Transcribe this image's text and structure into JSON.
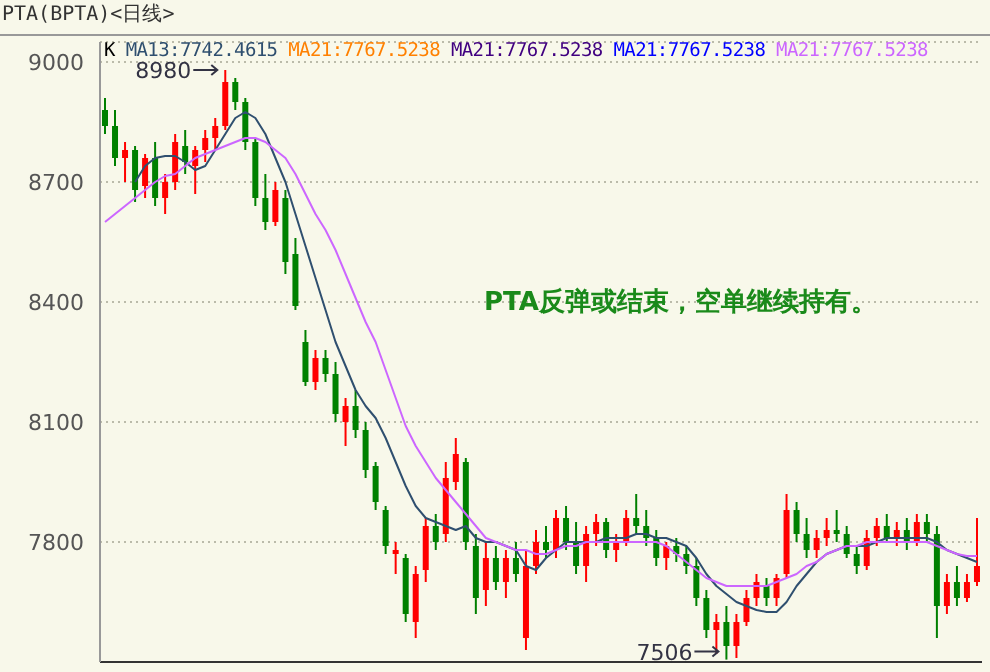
{
  "chart_data": {
    "type": "candlestick",
    "title": "PTA(BPTA)<日线>",
    "categories": [
      null,
      null,
      null,
      null,
      null,
      null,
      null,
      null,
      null,
      null,
      null,
      null,
      null,
      null,
      null,
      null,
      null,
      null,
      null,
      null,
      null,
      null,
      null,
      null,
      null,
      null,
      null,
      null,
      null,
      null,
      null,
      null,
      null,
      null,
      null,
      null,
      null,
      null,
      null,
      null,
      null,
      null,
      null,
      null,
      null,
      null,
      null,
      null,
      null,
      null,
      null,
      null,
      null,
      null,
      null,
      null,
      null,
      null,
      null,
      null,
      null,
      null,
      null,
      null,
      null,
      null,
      null,
      null,
      null,
      null,
      null,
      null,
      null,
      null,
      null,
      null,
      null,
      null,
      null,
      null,
      null,
      null,
      null,
      null,
      null,
      null,
      null,
      null
    ],
    "ohlc": [
      [
        8880,
        8910,
        8820,
        8840
      ],
      [
        8840,
        8880,
        8740,
        8760
      ],
      [
        8760,
        8800,
        8700,
        8780
      ],
      [
        8780,
        8790,
        8650,
        8680
      ],
      [
        8690,
        8770,
        8660,
        8760
      ],
      [
        8760,
        8800,
        8640,
        8660
      ],
      [
        8660,
        8720,
        8620,
        8700
      ],
      [
        8700,
        8820,
        8680,
        8800
      ],
      [
        8790,
        8830,
        8720,
        8750
      ],
      [
        8740,
        8790,
        8670,
        8780
      ],
      [
        8780,
        8830,
        8750,
        8810
      ],
      [
        8810,
        8860,
        8780,
        8840
      ],
      [
        8840,
        8980,
        8830,
        8950
      ],
      [
        8950,
        8960,
        8880,
        8900
      ],
      [
        8900,
        8910,
        8780,
        8800
      ],
      [
        8800,
        8810,
        8640,
        8660
      ],
      [
        8660,
        8720,
        8580,
        8600
      ],
      [
        8600,
        8700,
        8590,
        8680
      ],
      [
        8660,
        8680,
        8470,
        8500
      ],
      [
        8520,
        8560,
        8380,
        8390
      ],
      [
        8300,
        8330,
        8190,
        8200
      ],
      [
        8200,
        8280,
        8180,
        8260
      ],
      [
        8260,
        8280,
        8200,
        8220
      ],
      [
        8220,
        8250,
        8100,
        8120
      ],
      [
        8100,
        8160,
        8040,
        8140
      ],
      [
        8140,
        8180,
        8060,
        8080
      ],
      [
        8080,
        8100,
        7960,
        7980
      ],
      [
        7990,
        8000,
        7880,
        7900
      ],
      [
        7880,
        7890,
        7770,
        7790
      ],
      [
        7770,
        7800,
        7720,
        7780
      ],
      [
        7760,
        7770,
        7600,
        7620
      ],
      [
        7600,
        7740,
        7560,
        7720
      ],
      [
        7730,
        7860,
        7700,
        7840
      ],
      [
        7840,
        7870,
        7780,
        7800
      ],
      [
        7820,
        8000,
        7800,
        7960
      ],
      [
        7950,
        8060,
        7930,
        8020
      ],
      [
        8000,
        8010,
        7780,
        7800
      ],
      [
        7790,
        7820,
        7620,
        7660
      ],
      [
        7680,
        7800,
        7640,
        7760
      ],
      [
        7760,
        7790,
        7680,
        7700
      ],
      [
        7700,
        7780,
        7660,
        7760
      ],
      [
        7760,
        7800,
        7700,
        7720
      ],
      [
        7560,
        7780,
        7530,
        7740
      ],
      [
        7740,
        7830,
        7720,
        7800
      ],
      [
        7800,
        7840,
        7760,
        7780
      ],
      [
        7780,
        7880,
        7760,
        7860
      ],
      [
        7860,
        7890,
        7780,
        7800
      ],
      [
        7800,
        7850,
        7720,
        7740
      ],
      [
        7740,
        7840,
        7700,
        7820
      ],
      [
        7820,
        7870,
        7790,
        7850
      ],
      [
        7850,
        7860,
        7760,
        7780
      ],
      [
        7780,
        7820,
        7750,
        7800
      ],
      [
        7800,
        7880,
        7790,
        7860
      ],
      [
        7860,
        7920,
        7820,
        7840
      ],
      [
        7840,
        7880,
        7790,
        7810
      ],
      [
        7810,
        7830,
        7740,
        7760
      ],
      [
        7760,
        7800,
        7730,
        7790
      ],
      [
        7790,
        7810,
        7750,
        7770
      ],
      [
        7770,
        7790,
        7720,
        7740
      ],
      [
        7740,
        7760,
        7640,
        7660
      ],
      [
        7660,
        7680,
        7560,
        7580
      ],
      [
        7580,
        7620,
        7520,
        7600
      ],
      [
        7600,
        7640,
        7506,
        7540
      ],
      [
        7540,
        7620,
        7510,
        7600
      ],
      [
        7600,
        7680,
        7590,
        7660
      ],
      [
        7660,
        7720,
        7640,
        7700
      ],
      [
        7690,
        7710,
        7640,
        7660
      ],
      [
        7660,
        7720,
        7640,
        7710
      ],
      [
        7720,
        7920,
        7710,
        7880
      ],
      [
        7880,
        7900,
        7800,
        7820
      ],
      [
        7820,
        7860,
        7760,
        7780
      ],
      [
        7780,
        7830,
        7760,
        7810
      ],
      [
        7810,
        7860,
        7790,
        7830
      ],
      [
        7830,
        7880,
        7800,
        7820
      ],
      [
        7820,
        7840,
        7760,
        7770
      ],
      [
        7770,
        7790,
        7720,
        7740
      ],
      [
        7740,
        7830,
        7730,
        7810
      ],
      [
        7810,
        7860,
        7790,
        7840
      ],
      [
        7840,
        7870,
        7800,
        7810
      ],
      [
        7810,
        7850,
        7790,
        7830
      ],
      [
        7830,
        7860,
        7780,
        7800
      ],
      [
        7800,
        7870,
        7790,
        7850
      ],
      [
        7850,
        7870,
        7800,
        7820
      ],
      [
        7820,
        7840,
        7560,
        7640
      ],
      [
        7640,
        7720,
        7620,
        7700
      ],
      [
        7700,
        7740,
        7640,
        7660
      ],
      [
        7660,
        7720,
        7650,
        7700
      ],
      [
        7700,
        7860,
        7690,
        7740
      ]
    ],
    "series": [
      {
        "name": "MA13:7742.4615",
        "type": "line",
        "color": "#2f4f6f",
        "values": [
          null,
          null,
          null,
          8700,
          8740,
          8760,
          8765,
          8765,
          8750,
          8730,
          8740,
          8780,
          8820,
          8860,
          8875,
          8860,
          8820,
          8760,
          8700,
          8620,
          8540,
          8460,
          8380,
          8300,
          8240,
          8180,
          8140,
          8110,
          8060,
          8000,
          7940,
          7890,
          7860,
          7850,
          7840,
          7830,
          7840,
          7810,
          7800,
          7800,
          7790,
          7780,
          7740,
          7730,
          7760,
          7780,
          7800,
          7800,
          7800,
          7800,
          7810,
          7810,
          7810,
          7820,
          7820,
          7810,
          7810,
          7800,
          7790,
          7760,
          7720,
          7690,
          7670,
          7650,
          7640,
          7630,
          7625,
          7625,
          7650,
          7690,
          7720,
          7750,
          7770,
          7780,
          7790,
          7790,
          7790,
          7800,
          7810,
          7810,
          7810,
          7810,
          7810,
          7800,
          7780,
          7770,
          7760,
          7750
        ]
      },
      {
        "name": "MA21:7767.5238",
        "type": "line",
        "color": "#cc66ff",
        "values": [
          8600,
          8620,
          8640,
          8660,
          8680,
          8700,
          8715,
          8720,
          8740,
          8760,
          8770,
          8780,
          8790,
          8800,
          8810,
          8810,
          8800,
          8780,
          8760,
          8720,
          8670,
          8620,
          8580,
          8530,
          8470,
          8410,
          8350,
          8300,
          8230,
          8160,
          8090,
          8040,
          8000,
          7960,
          7930,
          7900,
          7870,
          7840,
          7810,
          7800,
          7790,
          7780,
          7780,
          7770,
          7770,
          7780,
          7790,
          7790,
          7800,
          7800,
          7800,
          7800,
          7800,
          7800,
          7800,
          7800,
          7790,
          7770,
          7750,
          7730,
          7710,
          7700,
          7690,
          7690,
          7690,
          7690,
          7690,
          7700,
          7710,
          7720,
          7740,
          7750,
          7770,
          7780,
          7790,
          7790,
          7800,
          7800,
          7800,
          7800,
          7800,
          7800,
          7800,
          7790,
          7780,
          7770,
          7765,
          7765
        ]
      }
    ],
    "annotations": [
      "K",
      "MA21:7767.5238",
      "MA21:7767.5238",
      "MA21:7767.5238",
      "PTA反弹或结束，空单继续持有。",
      "8980",
      "7506"
    ],
    "ylim": [
      7500,
      9050
    ],
    "yticks": [
      7800,
      8100,
      8400,
      8700,
      9000
    ],
    "grid": "y",
    "tick_labels": "y",
    "legend": "top left",
    "marker": "none",
    "line_style": "solid"
  }
}
